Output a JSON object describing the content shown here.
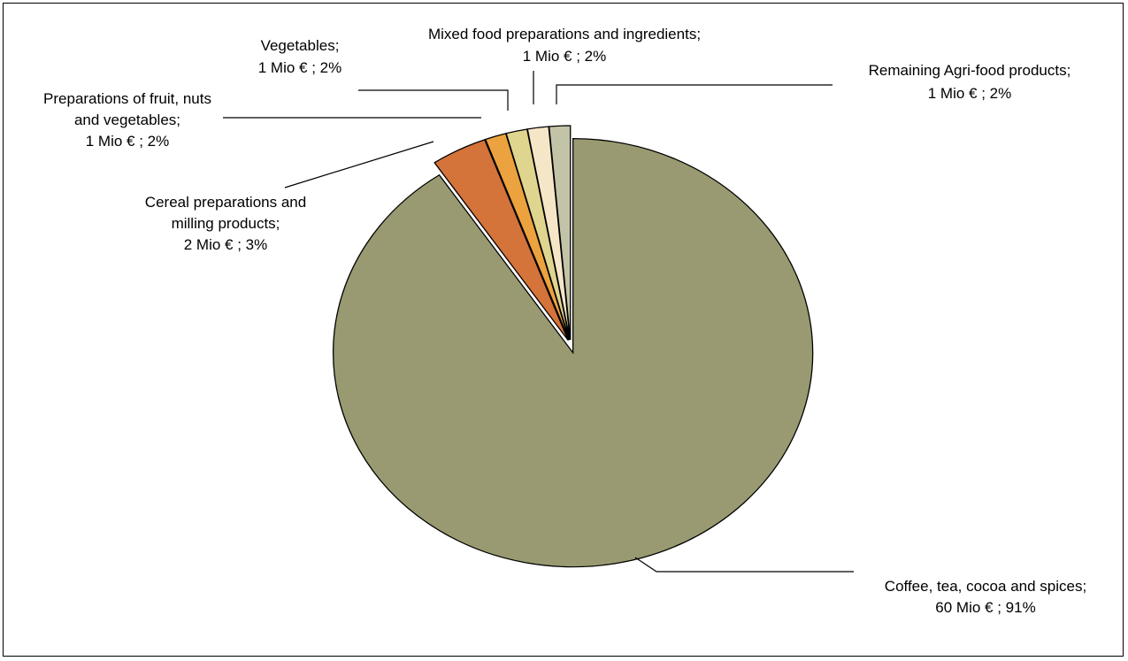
{
  "chart_data": {
    "type": "pie",
    "title": "",
    "slices": [
      {
        "name": "Coffee, tea, cocoa and spices",
        "value": 60,
        "percent": 91,
        "label_lines": [
          "Coffee, tea, cocoa and spices;",
          "60 Mio € ; 91%"
        ],
        "color": "#9a9a72"
      },
      {
        "name": "Cereal preparations and milling products",
        "value": 2,
        "percent": 3,
        "label_lines": [
          "Cereal preparations and",
          "milling products;",
          "2 Mio € ; 3%"
        ],
        "color": "#d4733a"
      },
      {
        "name": "Preparations of fruit, nuts and vegetables",
        "value": 1,
        "percent": 2,
        "label_lines": [
          "Preparations of fruit, nuts",
          "and vegetables;",
          "1 Mio € ; 2%"
        ],
        "color": "#eba23f"
      },
      {
        "name": "Vegetables",
        "value": 1,
        "percent": 2,
        "label_lines": [
          "Vegetables;",
          "1 Mio € ; 2%"
        ],
        "color": "#dfd58e"
      },
      {
        "name": "Mixed food preparations and ingredients",
        "value": 1,
        "percent": 2,
        "label_lines": [
          "Mixed food preparations and ingredients;",
          "1 Mio € ; 2%"
        ],
        "color": "#f6e6c8"
      },
      {
        "name": "Remaining Agri-food products",
        "value": 1,
        "percent": 2,
        "label_lines": [
          "Remaining Agri-food products;",
          "1 Mio € ; 2%"
        ],
        "color": "#c3c3a8"
      }
    ]
  }
}
